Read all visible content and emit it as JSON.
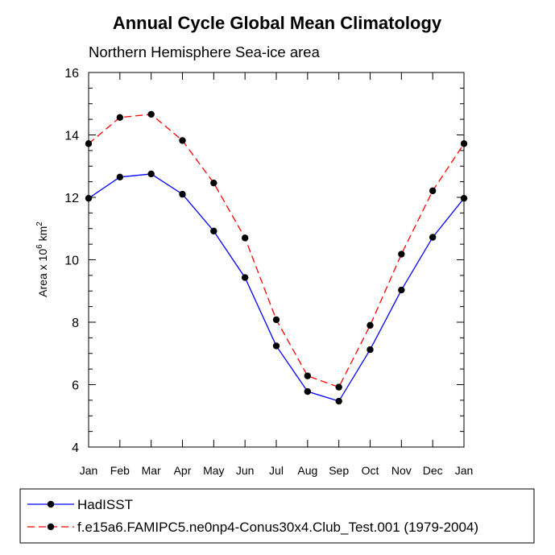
{
  "chart_data": {
    "type": "line",
    "title": "Annual Cycle Global Mean Climatology",
    "subtitle": "Northern Hemisphere Sea-ice area",
    "ylabel": "Area x 10",
    "ylabel_sup1": "6",
    "ylabel_unit": " km",
    "ylabel_sup2": "2",
    "xlabel": "",
    "categories": [
      "Jan",
      "Feb",
      "Mar",
      "Apr",
      "May",
      "Jun",
      "Jul",
      "Aug",
      "Sep",
      "Oct",
      "Nov",
      "Dec",
      "Jan"
    ],
    "ylim": [
      4,
      16
    ],
    "yticks": [
      "4",
      "6",
      "8",
      "10",
      "12",
      "14",
      "16"
    ],
    "grid": false,
    "legend_position": "bottom",
    "series": [
      {
        "name": "HadISST",
        "color": "#0000ff",
        "line_style": "solid",
        "values": [
          11.97,
          12.65,
          12.75,
          12.1,
          10.92,
          9.43,
          7.24,
          5.78,
          5.47,
          7.12,
          9.03,
          10.72,
          11.97
        ]
      },
      {
        "name": "f.e15a6.FAMIPC5.ne0np4-Conus30x4.Club_Test.001 (1979-2004)",
        "color": "#ff0000",
        "line_style": "dashed",
        "values": [
          13.72,
          14.56,
          14.66,
          13.82,
          12.46,
          10.7,
          8.08,
          6.28,
          5.92,
          7.9,
          10.18,
          12.21,
          13.72
        ]
      }
    ]
  }
}
